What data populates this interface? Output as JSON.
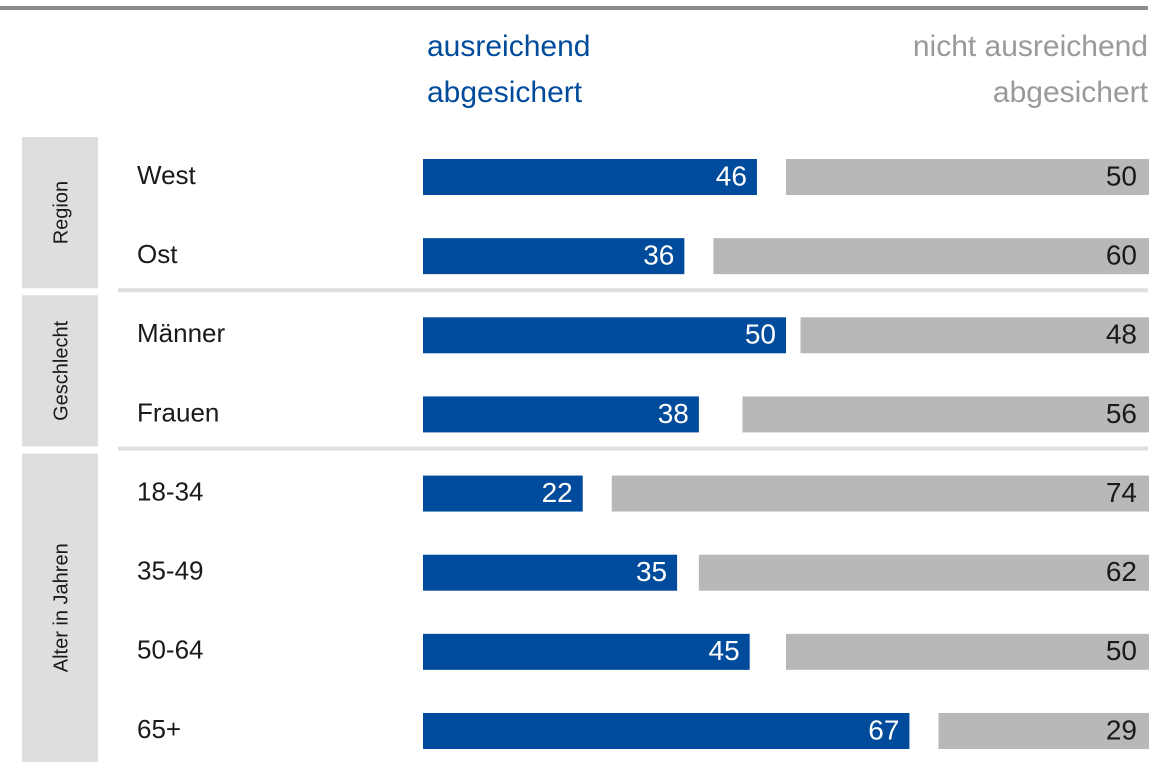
{
  "chart_data": {
    "type": "bar",
    "groups": [
      {
        "label": "Region",
        "categories": [
          "West",
          "Ost"
        ]
      },
      {
        "label": "Geschlecht",
        "categories": [
          "Männer",
          "Frauen"
        ]
      },
      {
        "label": "Alter in Jahren",
        "categories": [
          "18-34",
          "35-49",
          "50-64",
          "65+"
        ]
      }
    ],
    "series": [
      {
        "name": "ausreichend abgesichert",
        "legend_lines": [
          "ausreichend",
          "abgesichert"
        ],
        "color": "#004b9b",
        "label_color": "#ffffff",
        "anchor": "left",
        "values": [
          46,
          36,
          50,
          38,
          22,
          35,
          45,
          67
        ]
      },
      {
        "name": "nicht ausreichend abgesichert",
        "legend_lines": [
          "nicht ausreichend",
          "abgesichert"
        ],
        "color": "#b8b8b8",
        "label_color": "#1a1a1a",
        "anchor": "right",
        "values": [
          50,
          60,
          48,
          56,
          74,
          62,
          50,
          29
        ]
      }
    ],
    "xlim": [
      0,
      100
    ]
  }
}
